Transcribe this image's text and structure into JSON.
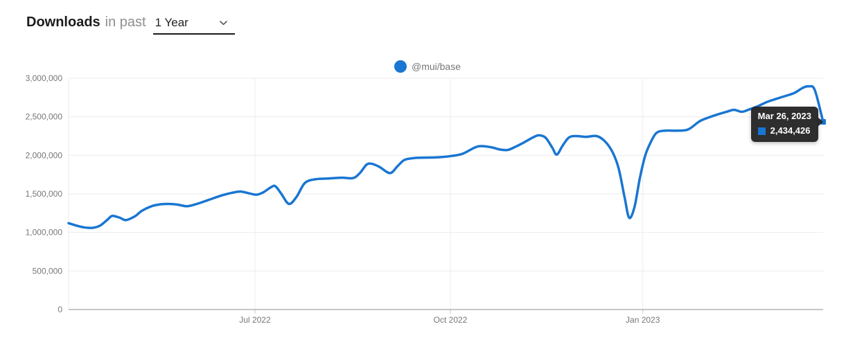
{
  "header": {
    "title_strong": "Downloads",
    "title_rest": "in past",
    "range_value": "1 Year"
  },
  "legend": {
    "label": "@mui/base",
    "color": "#1976d2"
  },
  "tooltip": {
    "date": "Mar 26, 2023",
    "value": "2,434,426",
    "marker_color": "#1976d2"
  },
  "colors": {
    "line": "#1976d2",
    "grid": "#ececec",
    "axis": "#b3b3b3",
    "tick": "#c6c6c6",
    "tick_text": "#767676"
  },
  "chart_data": {
    "type": "line",
    "title": "Downloads in past 1 Year",
    "legend_position": "top-center",
    "grid": true,
    "xlabel": "",
    "ylabel": "",
    "y_axis": {
      "min": 0,
      "max": 3000000,
      "ticks": [
        {
          "value": 0,
          "label": "0"
        },
        {
          "value": 500000,
          "label": "500,000"
        },
        {
          "value": 1000000,
          "label": "1,000,000"
        },
        {
          "value": 1500000,
          "label": "1,500,000"
        },
        {
          "value": 2000000,
          "label": "2,000,000"
        },
        {
          "value": 2500000,
          "label": "2,500,000"
        },
        {
          "value": 3000000,
          "label": "3,000,000"
        }
      ]
    },
    "x_axis": {
      "range": [
        "Mar 2022",
        "Mar 26, 2023"
      ],
      "ticks": [
        {
          "pos": 0.247,
          "label": "Jul 2022"
        },
        {
          "pos": 0.506,
          "label": "Oct 2022"
        },
        {
          "pos": 0.761,
          "label": "Jan 2023"
        }
      ]
    },
    "series": [
      {
        "name": "@mui/base",
        "color": "#1976d2",
        "points": [
          [
            0.0,
            1120000
          ],
          [
            0.01,
            1090000
          ],
          [
            0.021,
            1065000
          ],
          [
            0.032,
            1060000
          ],
          [
            0.042,
            1090000
          ],
          [
            0.052,
            1170000
          ],
          [
            0.058,
            1215000
          ],
          [
            0.068,
            1190000
          ],
          [
            0.076,
            1160000
          ],
          [
            0.088,
            1210000
          ],
          [
            0.097,
            1280000
          ],
          [
            0.11,
            1340000
          ],
          [
            0.122,
            1365000
          ],
          [
            0.133,
            1370000
          ],
          [
            0.145,
            1360000
          ],
          [
            0.157,
            1340000
          ],
          [
            0.17,
            1370000
          ],
          [
            0.185,
            1420000
          ],
          [
            0.203,
            1480000
          ],
          [
            0.217,
            1515000
          ],
          [
            0.228,
            1530000
          ],
          [
            0.24,
            1505000
          ],
          [
            0.249,
            1490000
          ],
          [
            0.258,
            1520000
          ],
          [
            0.268,
            1585000
          ],
          [
            0.274,
            1600000
          ],
          [
            0.282,
            1500000
          ],
          [
            0.292,
            1370000
          ],
          [
            0.302,
            1460000
          ],
          [
            0.313,
            1640000
          ],
          [
            0.327,
            1690000
          ],
          [
            0.345,
            1700000
          ],
          [
            0.362,
            1710000
          ],
          [
            0.377,
            1705000
          ],
          [
            0.386,
            1770000
          ],
          [
            0.395,
            1880000
          ],
          [
            0.402,
            1890000
          ],
          [
            0.412,
            1850000
          ],
          [
            0.426,
            1770000
          ],
          [
            0.436,
            1860000
          ],
          [
            0.445,
            1940000
          ],
          [
            0.458,
            1965000
          ],
          [
            0.472,
            1970000
          ],
          [
            0.49,
            1975000
          ],
          [
            0.506,
            1990000
          ],
          [
            0.522,
            2020000
          ],
          [
            0.538,
            2100000
          ],
          [
            0.547,
            2120000
          ],
          [
            0.56,
            2105000
          ],
          [
            0.572,
            2075000
          ],
          [
            0.582,
            2070000
          ],
          [
            0.592,
            2110000
          ],
          [
            0.604,
            2170000
          ],
          [
            0.615,
            2230000
          ],
          [
            0.623,
            2260000
          ],
          [
            0.632,
            2230000
          ],
          [
            0.641,
            2100000
          ],
          [
            0.647,
            2010000
          ],
          [
            0.655,
            2130000
          ],
          [
            0.663,
            2230000
          ],
          [
            0.672,
            2250000
          ],
          [
            0.686,
            2240000
          ],
          [
            0.7,
            2250000
          ],
          [
            0.711,
            2180000
          ],
          [
            0.721,
            2040000
          ],
          [
            0.729,
            1830000
          ],
          [
            0.737,
            1450000
          ],
          [
            0.743,
            1190000
          ],
          [
            0.75,
            1330000
          ],
          [
            0.757,
            1700000
          ],
          [
            0.764,
            1990000
          ],
          [
            0.771,
            2160000
          ],
          [
            0.779,
            2290000
          ],
          [
            0.79,
            2320000
          ],
          [
            0.806,
            2320000
          ],
          [
            0.821,
            2335000
          ],
          [
            0.836,
            2440000
          ],
          [
            0.848,
            2490000
          ],
          [
            0.86,
            2530000
          ],
          [
            0.872,
            2565000
          ],
          [
            0.882,
            2590000
          ],
          [
            0.892,
            2565000
          ],
          [
            0.902,
            2595000
          ],
          [
            0.913,
            2635000
          ],
          [
            0.925,
            2690000
          ],
          [
            0.937,
            2730000
          ],
          [
            0.95,
            2770000
          ],
          [
            0.962,
            2810000
          ],
          [
            0.973,
            2875000
          ],
          [
            0.981,
            2895000
          ],
          [
            0.989,
            2845000
          ],
          [
            1.0,
            2434426
          ]
        ]
      }
    ],
    "highlighted_point": {
      "x": 1.0,
      "date": "Mar 26, 2023",
      "value": 2434426
    }
  }
}
